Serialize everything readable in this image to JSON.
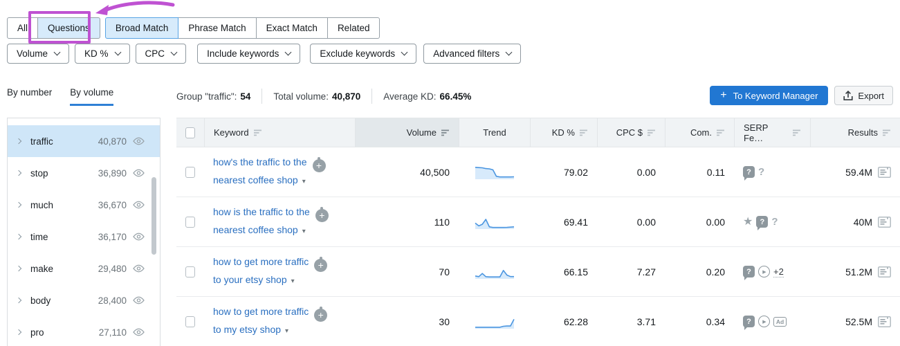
{
  "tabs": {
    "groups": [
      {
        "items": [
          {
            "label": "All"
          },
          {
            "label": "Questions",
            "highlighted": true
          }
        ]
      },
      {
        "items": [
          {
            "label": "Broad Match",
            "selected": true
          },
          {
            "label": "Phrase Match"
          },
          {
            "label": "Exact Match"
          },
          {
            "label": "Related"
          }
        ]
      }
    ]
  },
  "annotation": {
    "color": "#bf52d2",
    "target": "Questions"
  },
  "filters": [
    {
      "label": "Volume"
    },
    {
      "label": "KD %"
    },
    {
      "label": "CPC"
    },
    {
      "label": "Include keywords"
    },
    {
      "label": "Exclude keywords"
    },
    {
      "label": "Advanced filters"
    }
  ],
  "view_tabs": {
    "by_number": "By number",
    "by_volume": "By volume",
    "active": "by_volume"
  },
  "summary": {
    "group_label": "Group \"traffic\":",
    "group_value": "54",
    "total_label": "Total volume:",
    "total_value": "40,870",
    "avg_kd_label": "Average KD:",
    "avg_kd_value": "66.45%"
  },
  "actions": {
    "to_keyword_manager": "To Keyword Manager",
    "export": "Export"
  },
  "sidebar": {
    "items": [
      {
        "label": "traffic",
        "volume": "40,870",
        "selected": true
      },
      {
        "label": "stop",
        "volume": "36,890"
      },
      {
        "label": "much",
        "volume": "36,670"
      },
      {
        "label": "time",
        "volume": "36,170"
      },
      {
        "label": "make",
        "volume": "29,480"
      },
      {
        "label": "body",
        "volume": "28,400"
      },
      {
        "label": "pro",
        "volume": "27,110"
      }
    ]
  },
  "table": {
    "columns": [
      {
        "label": "Keyword",
        "align": "left",
        "sortable": true
      },
      {
        "label": "Volume",
        "align": "right",
        "sortable": true,
        "active": true
      },
      {
        "label": "Trend",
        "align": "center",
        "sortable": false
      },
      {
        "label": "KD %",
        "align": "right",
        "sortable": true
      },
      {
        "label": "CPC $",
        "align": "right",
        "sortable": true
      },
      {
        "label": "Com.",
        "align": "right",
        "sortable": true
      },
      {
        "label": "SERP Fe…",
        "align": "left",
        "sortable": true
      },
      {
        "label": "Results",
        "align": "right",
        "sortable": true
      }
    ],
    "rows": [
      {
        "keyword": [
          "how's the traffic to the",
          "nearest coffee shop"
        ],
        "volume": "40,500",
        "trend": [
          0.9,
          0.88,
          0.86,
          0.8,
          0.78,
          0.7,
          0.18,
          0.13,
          0.13,
          0.13,
          0.13,
          0.14
        ],
        "kd": "79.02",
        "cpc": "0.00",
        "com": "0.11",
        "serp_features": [
          "question-bubble",
          "question"
        ],
        "results": "59.4M"
      },
      {
        "keyword": [
          "how is the traffic to the",
          "nearest coffee shop"
        ],
        "volume": "110",
        "trend": [
          0.42,
          0.2,
          0.33,
          0.72,
          0.12,
          0.07,
          0.07,
          0.07,
          0.07,
          0.08,
          0.1,
          0.12
        ],
        "kd": "69.41",
        "cpc": "0.00",
        "com": "0.00",
        "serp_features": [
          "star",
          "question-bubble",
          "question"
        ],
        "results": "40M"
      },
      {
        "keyword": [
          "how to get more traffic",
          "to your etsy shop"
        ],
        "volume": "70",
        "trend": [
          0.18,
          0.12,
          0.38,
          0.12,
          0.1,
          0.1,
          0.1,
          0.1,
          0.62,
          0.25,
          0.13,
          0.13
        ],
        "kd": "66.15",
        "cpc": "7.27",
        "com": "0.20",
        "serp_features": [
          "question-bubble",
          "video",
          "+2"
        ],
        "results": "51.2M"
      },
      {
        "keyword": [
          "how to get more traffic",
          "to my etsy shop"
        ],
        "volume": "30",
        "trend": [
          0.06,
          0.06,
          0.06,
          0.06,
          0.06,
          0.06,
          0.06,
          0.06,
          0.14,
          0.16,
          0.16,
          0.7
        ],
        "kd": "62.28",
        "cpc": "3.71",
        "com": "0.34",
        "serp_features": [
          "question-bubble",
          "video",
          "ad"
        ],
        "results": "52.5M"
      }
    ]
  },
  "colors": {
    "accent_blue": "#2177d2",
    "link_blue": "#2a6fc0",
    "tab_highlight": "#d7ebfb",
    "selected_row": "#cfe6f8",
    "sparkline": "#4a95e0",
    "sparkline_fill": "#d7eafb",
    "annotation": "#bf52d2"
  }
}
